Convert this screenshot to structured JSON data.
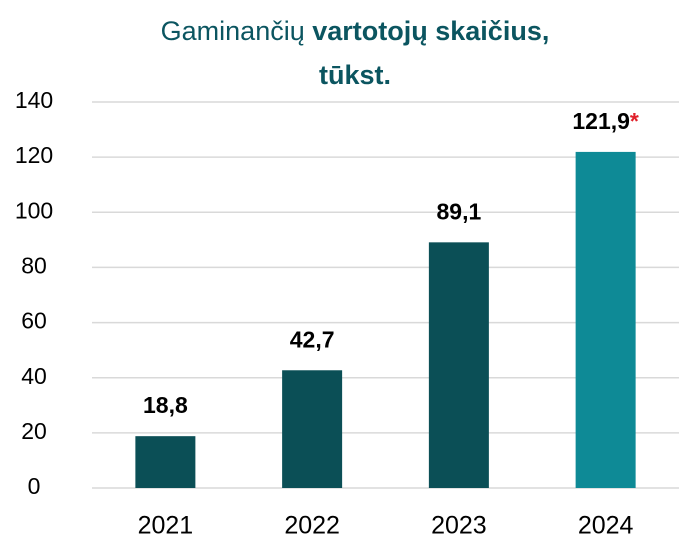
{
  "chart_data": {
    "type": "bar",
    "title_parts": [
      "Gaminančių",
      "vartotojų skaičius,",
      "tūkst."
    ],
    "categories": [
      "2021",
      "2022",
      "2023",
      "2024"
    ],
    "values": [
      18.8,
      42.7,
      89.1,
      121.9
    ],
    "value_labels": [
      "18,8",
      "42,7",
      "89,1",
      "121,9"
    ],
    "colors": [
      "#0b4f56",
      "#0b4f56",
      "#0b4f56",
      "#0e8a96"
    ],
    "annotation": {
      "category": "2024",
      "text": "*",
      "color": "#e0202a"
    },
    "ylim": [
      0,
      140
    ],
    "yticks": [
      0,
      20,
      40,
      60,
      80,
      100,
      120,
      140
    ],
    "grid": true
  }
}
